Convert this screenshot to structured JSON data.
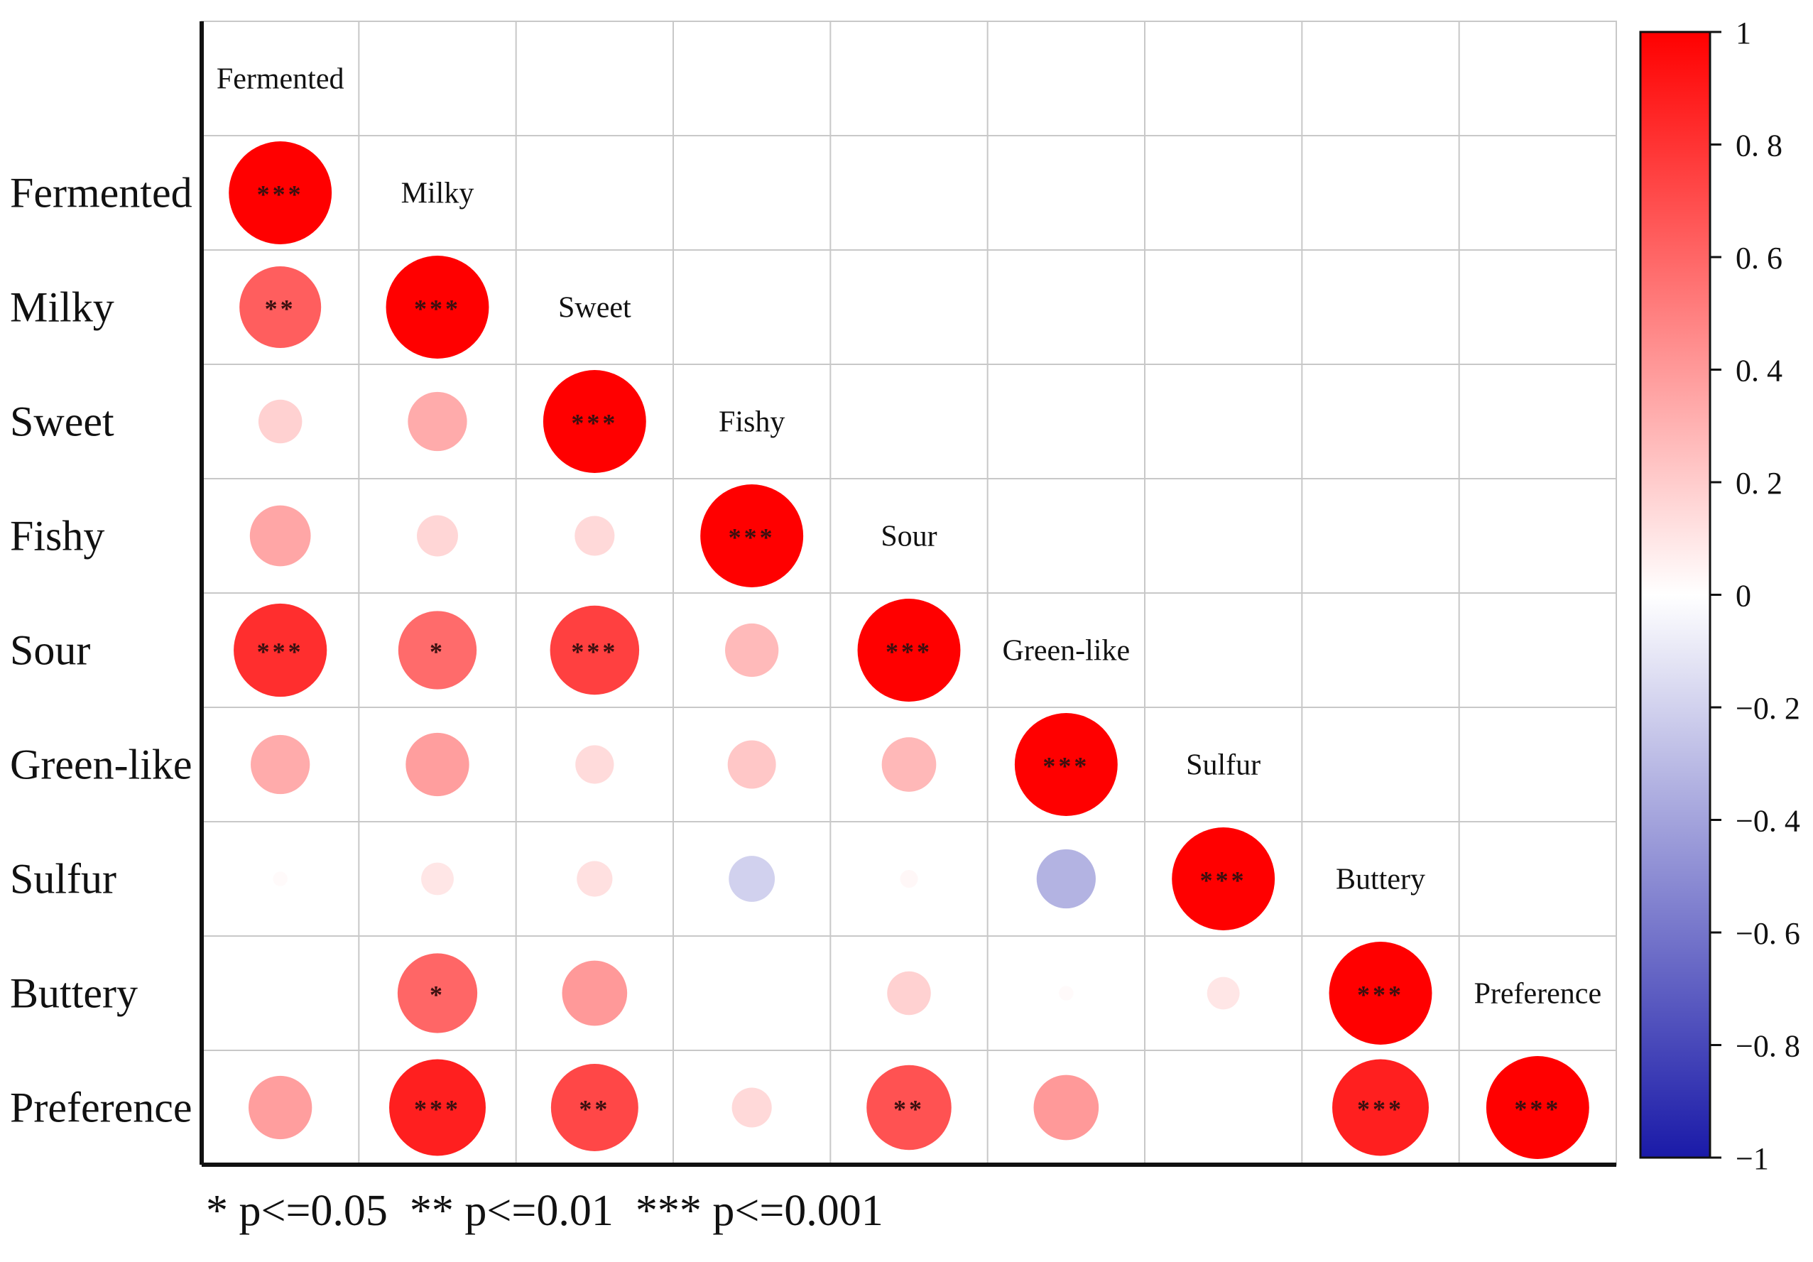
{
  "chart_data": {
    "type": "heatmap",
    "variables": [
      "Fermented",
      "Milky",
      "Sweet",
      "Fishy",
      "Sour",
      "Green-like",
      "Sulfur",
      "Buttery",
      "Preference"
    ],
    "layout": "lower-triangle-with-diagonal-labels",
    "cells": [
      {
        "row": "Fermented",
        "col": "Fermented",
        "r": 1.0,
        "sig": "***"
      },
      {
        "row": "Milky",
        "col": "Fermented",
        "r": 0.63,
        "sig": "**"
      },
      {
        "row": "Milky",
        "col": "Milky",
        "r": 1.0,
        "sig": "***"
      },
      {
        "row": "Sweet",
        "col": "Fermented",
        "r": 0.18,
        "sig": ""
      },
      {
        "row": "Sweet",
        "col": "Milky",
        "r": 0.33,
        "sig": ""
      },
      {
        "row": "Sweet",
        "col": "Sweet",
        "r": 1.0,
        "sig": "***"
      },
      {
        "row": "Fishy",
        "col": "Fermented",
        "r": 0.35,
        "sig": ""
      },
      {
        "row": "Fishy",
        "col": "Milky",
        "r": 0.16,
        "sig": ""
      },
      {
        "row": "Fishy",
        "col": "Sweet",
        "r": 0.15,
        "sig": ""
      },
      {
        "row": "Fishy",
        "col": "Fishy",
        "r": 1.0,
        "sig": "***"
      },
      {
        "row": "Sour",
        "col": "Fermented",
        "r": 0.82,
        "sig": "***"
      },
      {
        "row": "Sour",
        "col": "Milky",
        "r": 0.58,
        "sig": "*"
      },
      {
        "row": "Sour",
        "col": "Sweet",
        "r": 0.75,
        "sig": "***"
      },
      {
        "row": "Sour",
        "col": "Fishy",
        "r": 0.27,
        "sig": ""
      },
      {
        "row": "Sour",
        "col": "Sour",
        "r": 1.0,
        "sig": "***"
      },
      {
        "row": "Green-like",
        "col": "Fermented",
        "r": 0.33,
        "sig": ""
      },
      {
        "row": "Green-like",
        "col": "Milky",
        "r": 0.38,
        "sig": ""
      },
      {
        "row": "Green-like",
        "col": "Sweet",
        "r": 0.14,
        "sig": ""
      },
      {
        "row": "Green-like",
        "col": "Fishy",
        "r": 0.22,
        "sig": ""
      },
      {
        "row": "Green-like",
        "col": "Sour",
        "r": 0.28,
        "sig": ""
      },
      {
        "row": "Green-like",
        "col": "Green-like",
        "r": 1.0,
        "sig": "***"
      },
      {
        "row": "Sulfur",
        "col": "Fermented",
        "r": 0.02,
        "sig": ""
      },
      {
        "row": "Sulfur",
        "col": "Milky",
        "r": 0.1,
        "sig": ""
      },
      {
        "row": "Sulfur",
        "col": "Sweet",
        "r": 0.12,
        "sig": ""
      },
      {
        "row": "Sulfur",
        "col": "Fishy",
        "r": -0.2,
        "sig": ""
      },
      {
        "row": "Sulfur",
        "col": "Sour",
        "r": 0.03,
        "sig": ""
      },
      {
        "row": "Sulfur",
        "col": "Green-like",
        "r": -0.33,
        "sig": ""
      },
      {
        "row": "Sulfur",
        "col": "Sulfur",
        "r": 1.0,
        "sig": "***"
      },
      {
        "row": "Buttery",
        "col": "Fermented",
        "r": 0.0,
        "sig": ""
      },
      {
        "row": "Buttery",
        "col": "Milky",
        "r": 0.6,
        "sig": "*"
      },
      {
        "row": "Buttery",
        "col": "Sweet",
        "r": 0.4,
        "sig": ""
      },
      {
        "row": "Buttery",
        "col": "Fishy",
        "r": 0.0,
        "sig": ""
      },
      {
        "row": "Buttery",
        "col": "Sour",
        "r": 0.18,
        "sig": ""
      },
      {
        "row": "Buttery",
        "col": "Green-like",
        "r": 0.02,
        "sig": ""
      },
      {
        "row": "Buttery",
        "col": "Sulfur",
        "r": 0.1,
        "sig": ""
      },
      {
        "row": "Buttery",
        "col": "Buttery",
        "r": 1.0,
        "sig": "***"
      },
      {
        "row": "Preference",
        "col": "Fermented",
        "r": 0.38,
        "sig": ""
      },
      {
        "row": "Preference",
        "col": "Milky",
        "r": 0.88,
        "sig": "***"
      },
      {
        "row": "Preference",
        "col": "Sweet",
        "r": 0.72,
        "sig": "**"
      },
      {
        "row": "Preference",
        "col": "Fishy",
        "r": 0.15,
        "sig": ""
      },
      {
        "row": "Preference",
        "col": "Sour",
        "r": 0.68,
        "sig": "**"
      },
      {
        "row": "Preference",
        "col": "Green-like",
        "r": 0.4,
        "sig": ""
      },
      {
        "row": "Preference",
        "col": "Sulfur",
        "r": 0.0,
        "sig": ""
      },
      {
        "row": "Preference",
        "col": "Buttery",
        "r": 0.88,
        "sig": "***"
      },
      {
        "row": "Preference",
        "col": "Preference",
        "r": 1.0,
        "sig": "***"
      }
    ],
    "colorbar": {
      "range": [
        -1,
        1
      ],
      "ticks": [
        "1",
        "0. 8",
        "0. 6",
        "0. 4",
        "0. 2",
        "0",
        "−0. 2",
        "−0. 4",
        "−0. 6",
        "−0. 8",
        "−1"
      ],
      "colors": {
        "low": "#1a1aa8",
        "mid": "#ffffff",
        "high": "#ff0000"
      }
    },
    "significance_note": "* p<=0.05  ** p<=0.01  *** p<=0.001",
    "title": "",
    "xlabel": "",
    "ylabel": ""
  }
}
